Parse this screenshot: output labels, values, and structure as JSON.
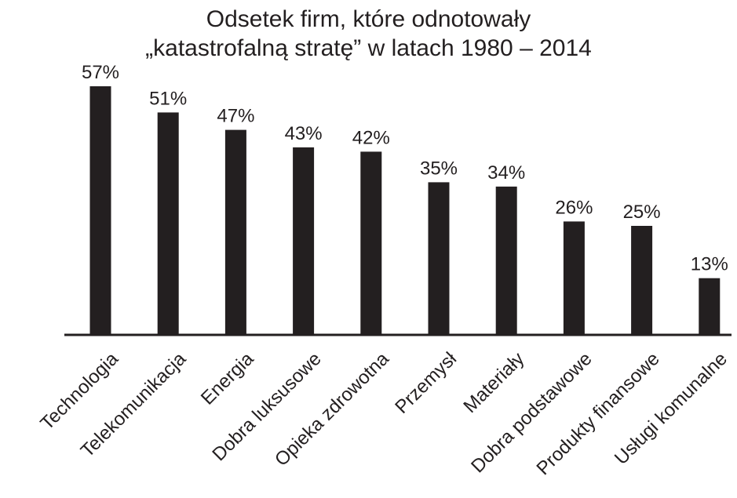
{
  "chart_data": {
    "type": "bar",
    "title_lines": [
      "Odsetek firm, które odnotowały",
      "„katastrofalną stratę” w latach 1980 – 2014"
    ],
    "categories": [
      "Technologia",
      "Telekomunikacja",
      "Energia",
      "Dobra luksusowe",
      "Opieka zdrowotna",
      "Przemysł",
      "Materiały",
      "Dobra podstawowe",
      "Produkty finansowe",
      "Usługi komunalne"
    ],
    "values": [
      57,
      51,
      47,
      43,
      42,
      35,
      34,
      26,
      25,
      13
    ],
    "data_labels": [
      "57%",
      "51%",
      "47%",
      "43%",
      "42%",
      "35%",
      "34%",
      "26%",
      "25%",
      "13%"
    ],
    "ylim": [
      0,
      57
    ],
    "grid": false,
    "legend": "none",
    "bar_color": "#231f20"
  }
}
